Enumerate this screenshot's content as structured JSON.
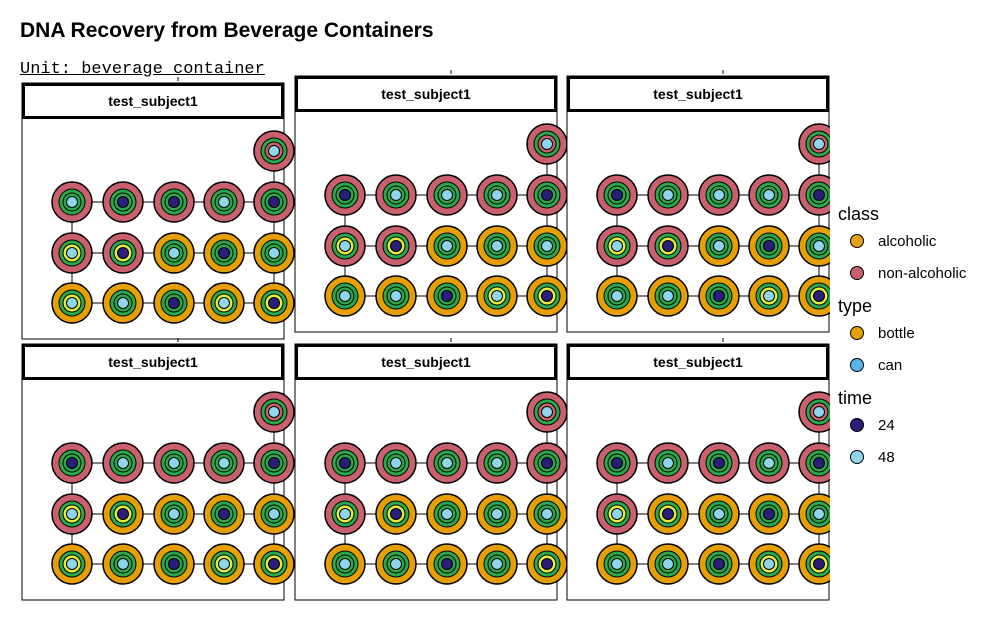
{
  "title": "DNA Recovery from Beverage Containers",
  "unit_label": "Unit: beverage container",
  "colors": {
    "alcoholic": "#E6A019",
    "non_alcoholic": "#C9606E",
    "bottle": "#E69F00",
    "can": "#56B4E9",
    "t24": "#2A1E7A",
    "t48": "#8FD6EC",
    "green": "#2BA84A",
    "yellow": "#E3EE3C"
  },
  "panels": [
    {
      "label": "test_subject1",
      "rows": [
        [
          "E"
        ],
        [
          "pgrgc",
          "pgrgn",
          "pgrgn",
          "pgrgc",
          "pgrgn"
        ],
        [
          "pgryc",
          "pgryn",
          "ogrgc",
          "ogrgn",
          "ogrgc"
        ],
        [
          "ogryc",
          "ogrgc",
          "ogrgn",
          "ogryc",
          "ogryn"
        ]
      ]
    },
    {
      "label": "test_subject1",
      "rows": [
        [
          "E"
        ],
        [
          "pgrgn",
          "pgrgc",
          "pgrgc",
          "pgrgc",
          "pgrgn"
        ],
        [
          "pgryc",
          "pgryn",
          "ogrgc",
          "ogrgc",
          "ogrgc"
        ],
        [
          "ogrgc",
          "ogrgc",
          "ogrgn",
          "ogryc",
          "ogryn"
        ]
      ]
    },
    {
      "label": "test_subject1",
      "rows": [
        [
          "E"
        ],
        [
          "pgrgn",
          "pgrgc",
          "pgrgc",
          "pgrgc",
          "pgrgn"
        ],
        [
          "pgryc",
          "pgryn",
          "ogrgc",
          "ogrgn",
          "ogrgc"
        ],
        [
          "ogrgc",
          "ogrgc",
          "ogrgn",
          "ogryc",
          "ogryn"
        ]
      ]
    },
    {
      "label": "test_subject1",
      "rows": [
        [
          "E"
        ],
        [
          "pgrgn",
          "pgrgc",
          "pgrgc",
          "pgrgc",
          "pgrgn"
        ],
        [
          "pgryc",
          "ogryn",
          "ogrgc",
          "ogrgn",
          "ogrgc"
        ],
        [
          "ogryc",
          "ogrgc",
          "ogrgn",
          "ogryc",
          "ogryn"
        ]
      ]
    },
    {
      "label": "test_subject1",
      "rows": [
        [
          "E"
        ],
        [
          "pgrgn",
          "pgrgc",
          "pgrgc",
          "pgrgc",
          "pgrgn"
        ],
        [
          "pgryc",
          "ogryn",
          "ogrgc",
          "ogrgc",
          "ogrgc"
        ],
        [
          "ogrgc",
          "ogrgc",
          "ogrgn",
          "ogrgc",
          "ogryn"
        ]
      ]
    },
    {
      "label": "test_subject1",
      "rows": [
        [
          "E"
        ],
        [
          "pgrgn",
          "pgrgc",
          "pgrgn",
          "pgrgc",
          "pgrgn"
        ],
        [
          "pgryc",
          "ogryn",
          "ogrgc",
          "ogrgn",
          "ogrgc"
        ],
        [
          "ogrgc",
          "ogrgc",
          "ogrgn",
          "ogryc",
          "ogryn"
        ]
      ]
    }
  ],
  "legend": {
    "class": {
      "title": "class",
      "items": [
        {
          "label": "alcoholic",
          "color": "#E6A019"
        },
        {
          "label": "non-alcoholic",
          "color": "#C9606E"
        }
      ]
    },
    "type": {
      "title": "type",
      "items": [
        {
          "label": "bottle",
          "color": "#E69F00"
        },
        {
          "label": "can",
          "color": "#56B4E9"
        }
      ]
    },
    "time": {
      "title": "time",
      "items": [
        {
          "label": "24",
          "color": "#2A1E7A"
        },
        {
          "label": "48",
          "color": "#8FD6EC"
        }
      ]
    }
  }
}
